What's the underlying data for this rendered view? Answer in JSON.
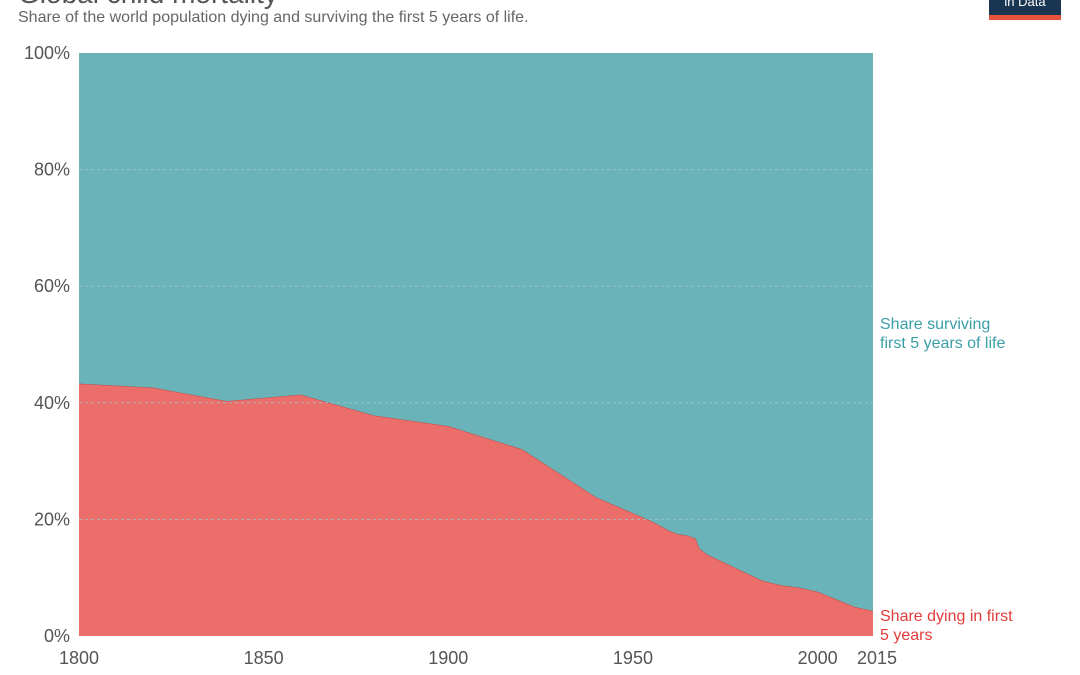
{
  "header": {
    "title": "Global child mortality",
    "subtitle": "Share of the world population dying and surviving the first 5 years of life.",
    "logo_text": "in Data"
  },
  "colors": {
    "surviving": "#6ab3b8",
    "surviving_label": "#3a9ea6",
    "dying": "#ec6e6b",
    "dying_label": "#e23c3a",
    "grid": "#9ec9cc",
    "axis_text": "#555555"
  },
  "chart_data": {
    "type": "area",
    "title": "Global child mortality",
    "subtitle": "Share of the world population dying and surviving the first 5 years of life.",
    "xlabel": "",
    "ylabel": "",
    "xlim": [
      1800,
      2015
    ],
    "ylim": [
      0,
      100
    ],
    "x_ticks": [
      1800,
      1850,
      1900,
      1950,
      2000,
      2015
    ],
    "y_ticks": [
      0,
      20,
      40,
      60,
      80,
      100
    ],
    "y_tick_labels": [
      "0%",
      "20%",
      "40%",
      "60%",
      "80%",
      "100%"
    ],
    "grid": true,
    "stacked": true,
    "x": [
      1800,
      1820,
      1840,
      1860,
      1880,
      1900,
      1920,
      1940,
      1955,
      1960,
      1962,
      1965,
      1967,
      1968,
      1970,
      1975,
      1980,
      1985,
      1990,
      1995,
      2000,
      2005,
      2010,
      2015
    ],
    "series": [
      {
        "name": "Share dying in first 5 years",
        "label_lines": [
          "Share dying in first",
          "5 years"
        ],
        "color_key": "dying",
        "values": [
          43.3,
          42.6,
          40.3,
          41.4,
          37.8,
          36.0,
          32.0,
          23.8,
          19.7,
          18.0,
          17.5,
          17.2,
          16.7,
          15.0,
          14.0,
          12.5,
          11.0,
          9.5,
          8.7,
          8.3,
          7.6,
          6.3,
          5.0,
          4.3
        ]
      },
      {
        "name": "Share surviving first 5 years of life",
        "label_lines": [
          "Share surviving",
          "first 5 years of life"
        ],
        "color_key": "surviving",
        "values": [
          56.7,
          57.4,
          59.7,
          58.6,
          62.2,
          64.0,
          68.0,
          76.2,
          80.3,
          82.0,
          82.5,
          82.8,
          83.3,
          85.0,
          86.0,
          87.5,
          89.0,
          90.5,
          91.3,
          91.7,
          92.4,
          93.7,
          95.0,
          95.7
        ]
      }
    ]
  }
}
